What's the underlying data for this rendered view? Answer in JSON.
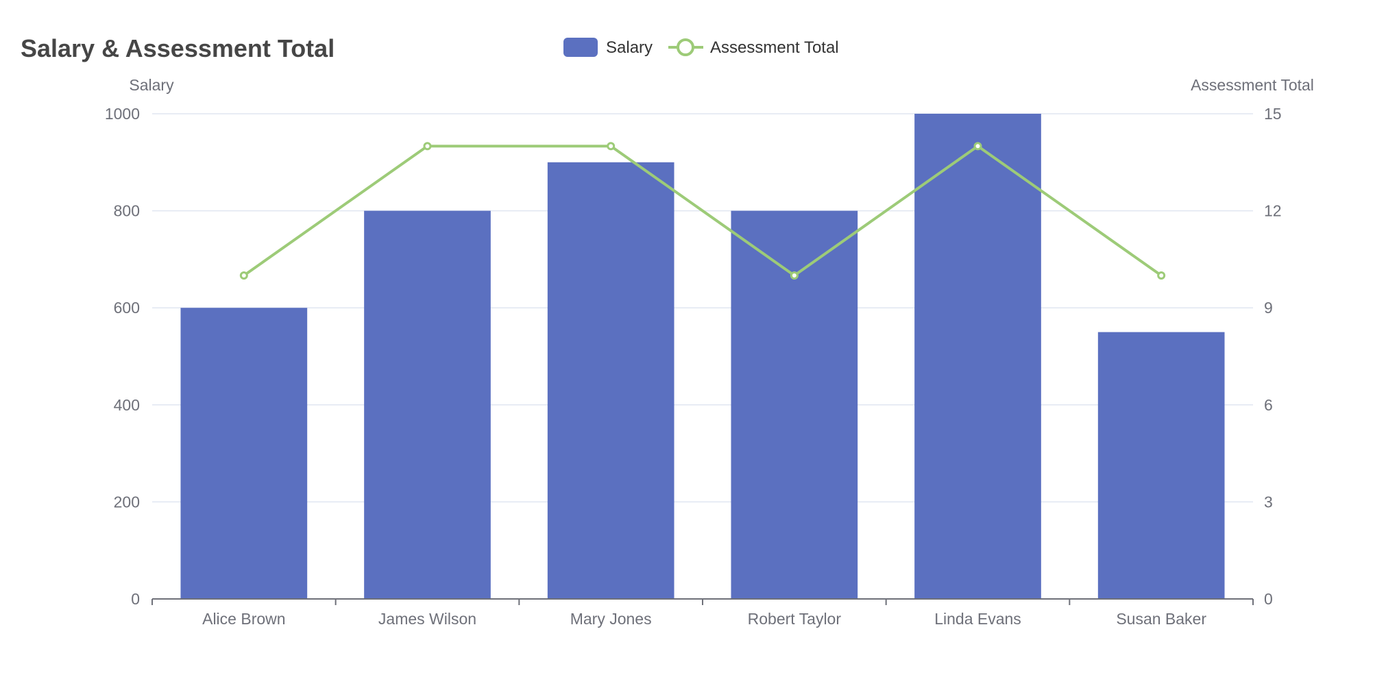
{
  "chart_data": {
    "type": "bar",
    "title": "Salary & Assessment Total",
    "categories": [
      "Alice Brown",
      "James Wilson",
      "Mary Jones",
      "Robert Taylor",
      "Linda Evans",
      "Susan Baker"
    ],
    "series": [
      {
        "name": "Salary",
        "type": "bar",
        "axis": "left",
        "values": [
          600,
          800,
          900,
          800,
          1000,
          550
        ],
        "color": "#5b70c0"
      },
      {
        "name": "Assessment Total",
        "type": "line",
        "axis": "right",
        "values": [
          10,
          14,
          14,
          10,
          14,
          10
        ],
        "color": "#9dcb78"
      }
    ],
    "y_left": {
      "label": "Salary",
      "ylim": [
        0,
        1000
      ],
      "ticks": [
        0,
        200,
        400,
        600,
        800,
        1000
      ]
    },
    "y_right": {
      "label": "Assessment Total",
      "ylim": [
        0,
        15
      ],
      "ticks": [
        0,
        3,
        6,
        9,
        12,
        15
      ]
    },
    "grid": true,
    "legend_position": "top-center",
    "colors": {
      "title": "#464646",
      "axis_text": "#6e7079",
      "grid": "#e0e6f1",
      "axis_line": "#6e7079",
      "legend_text": "#333333"
    }
  }
}
